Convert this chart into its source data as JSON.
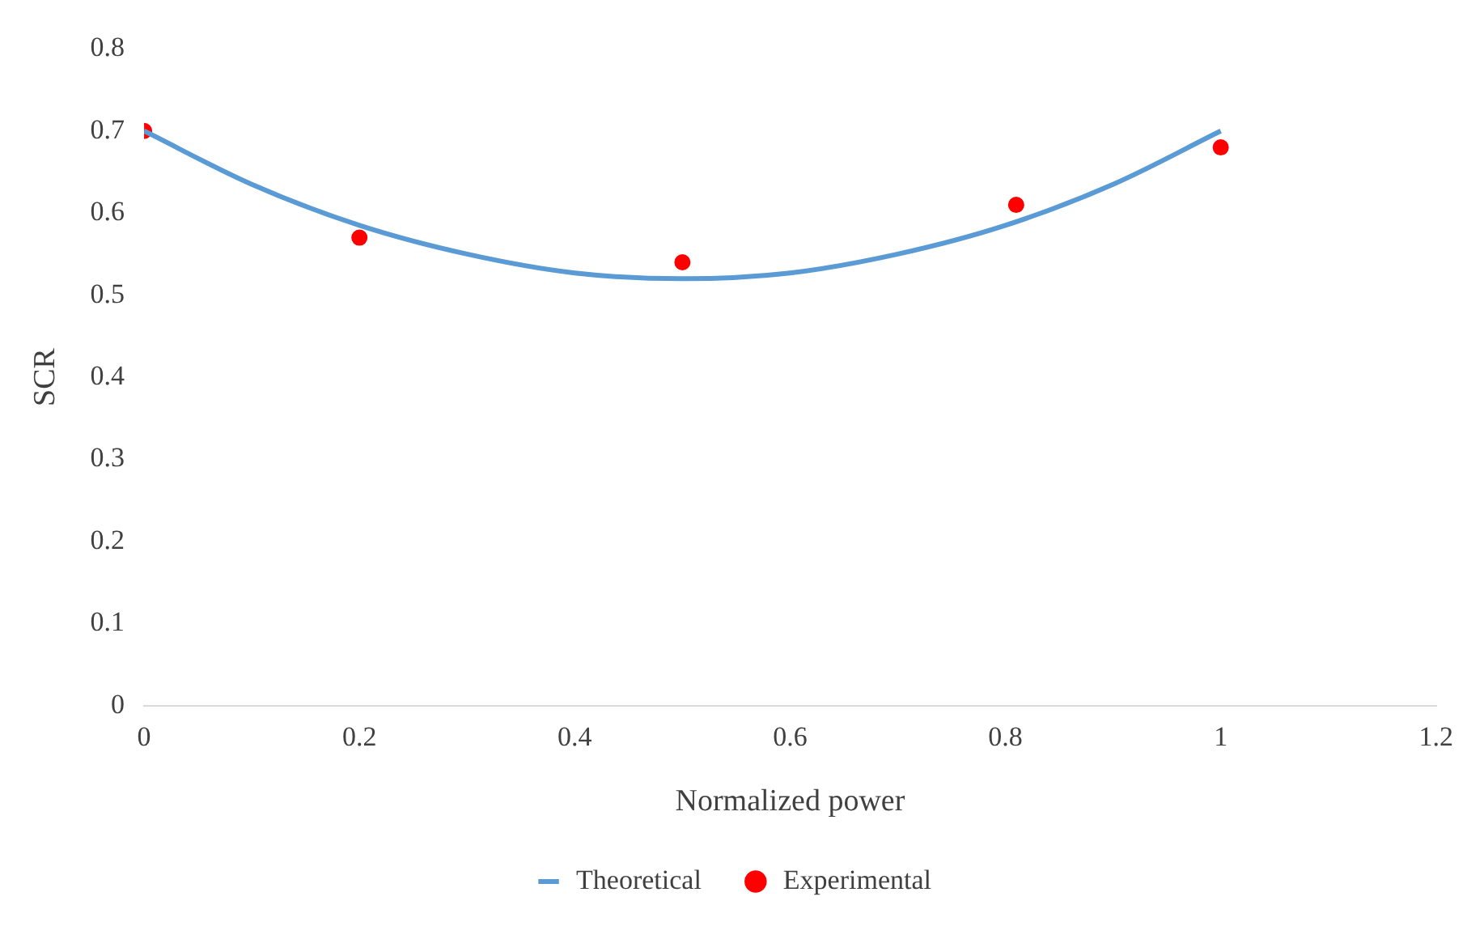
{
  "chart_data": {
    "type": "line",
    "xlabel": "Normalized power",
    "ylabel": "SCR",
    "xlim": [
      0,
      1.2
    ],
    "xticks": [
      0,
      0.2,
      0.4,
      0.6,
      0.8,
      1,
      1.2
    ],
    "ylim": [
      0,
      0.8
    ],
    "yticks": [
      0,
      0.1,
      0.2,
      0.3,
      0.4,
      0.5,
      0.6,
      0.7,
      0.8
    ],
    "grid": false,
    "legend": "bottom",
    "series": [
      {
        "name": "Theoretical",
        "color": "#5b9bd5",
        "marker": "none",
        "x": [
          0,
          0.1,
          0.2,
          0.3,
          0.4,
          0.5,
          0.6,
          0.7,
          0.8,
          0.9,
          1
        ],
        "values": [
          0.7,
          0.635,
          0.585,
          0.55,
          0.527,
          0.52,
          0.527,
          0.55,
          0.585,
          0.635,
          0.7
        ]
      },
      {
        "name": "Experimental",
        "type": "scatter",
        "color": "#ff0000",
        "marker": "circle",
        "x": [
          0,
          0.2,
          0.5,
          0.81,
          1
        ],
        "values": [
          0.7,
          0.57,
          0.54,
          0.61,
          0.68
        ]
      }
    ]
  }
}
